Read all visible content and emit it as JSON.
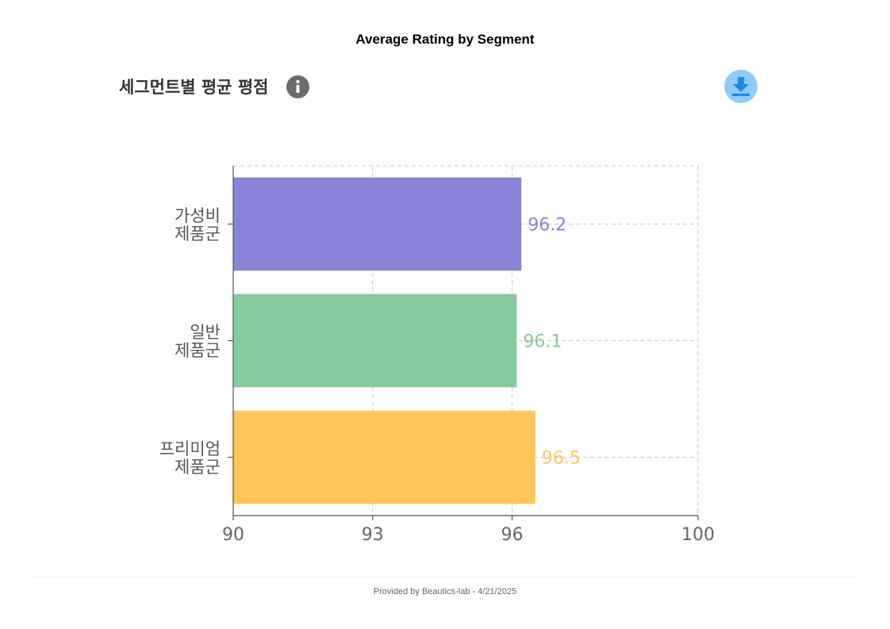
{
  "page": {
    "title": "Average Rating by Segment",
    "footer": "Provided by Beautics-lab - 4/21/2025"
  },
  "header": {
    "chart_title": "세그먼트별 평균 평점",
    "info_icon": "info-icon",
    "download_icon": "download-icon"
  },
  "colors": {
    "axis": "#555555",
    "grid": "#c8c8c8",
    "tick_text": "#666666",
    "category_text": "#555555"
  },
  "chart_data": {
    "type": "bar",
    "orientation": "horizontal",
    "title": "세그먼트별 평균 평점",
    "xlabel": "",
    "ylabel": "",
    "xlim": [
      90,
      100
    ],
    "xticks": [
      90,
      93,
      96,
      100
    ],
    "grid": true,
    "categories": [
      [
        "가성비",
        "제품군"
      ],
      [
        "일반",
        "제품군"
      ],
      [
        "프리미엄",
        "제품군"
      ]
    ],
    "values": [
      96.2,
      96.1,
      96.5
    ],
    "value_labels": [
      "96.2",
      "96.1",
      "96.5"
    ],
    "colors": [
      "#8a84d8",
      "#86cb9d",
      "#fec65a"
    ]
  }
}
